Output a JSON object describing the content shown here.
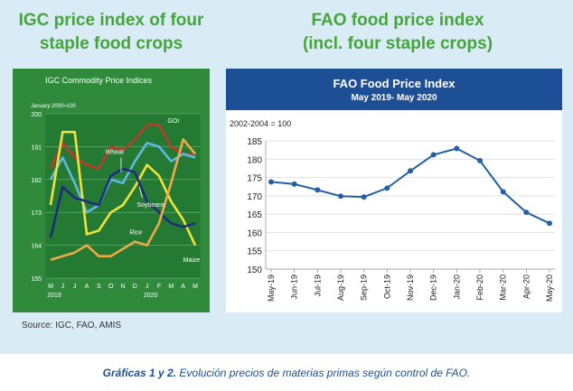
{
  "titles": {
    "left": [
      "IGC price index of four",
      "staple food crops"
    ],
    "right": [
      "FAO food price index",
      "(incl. four staple crops)"
    ]
  },
  "source": "Source: IGC, FAO, AMIS",
  "caption": {
    "bold": "Gráficas 1 y 2.",
    "rest": " Evolución precios de materias primas según control de FAO."
  },
  "colors": {
    "title_green": "#46a43d",
    "panel_bg": "#d9ecf6",
    "igc_bg": "#2f8a3c",
    "fao_header": "#1d4f97",
    "fao_line": "#2460a7"
  },
  "chart_data": [
    {
      "type": "line",
      "title": "IGC Commodity Price Indices",
      "subtitle": "January 2000=100",
      "ylim": [
        155,
        200
      ],
      "yticks": [
        155,
        164,
        173,
        182,
        191,
        200
      ],
      "x_tick_labels": [
        "M",
        "J",
        "J",
        "A",
        "S",
        "O",
        "N",
        "D",
        "J",
        "F",
        "M",
        "A",
        "M"
      ],
      "x_year_labels": [
        {
          "label": "2019",
          "index": 0
        },
        {
          "label": "2020",
          "index": 8
        }
      ],
      "series": [
        {
          "name": "GOI",
          "color": "#c0392b",
          "values": [
            185,
            192,
            188,
            186,
            185,
            191,
            190,
            193,
            197,
            197,
            191,
            189,
            189
          ]
        },
        {
          "name": "Wheat",
          "color": "#5fb9e3",
          "values": [
            182,
            188,
            181,
            173,
            175,
            182,
            181,
            187,
            192,
            191,
            187,
            189,
            188
          ]
        },
        {
          "name": "Soybeans",
          "color": "#f0e23c",
          "values": [
            175,
            195,
            195,
            167,
            168,
            173,
            175,
            180,
            186,
            183,
            176,
            171,
            164
          ]
        },
        {
          "name": "Rice",
          "color": "#1d2f7a",
          "values": [
            166,
            180,
            177,
            176,
            175,
            183,
            185,
            184,
            176,
            173,
            170,
            169,
            170
          ]
        },
        {
          "name": "Maize",
          "color": "#f0a848",
          "values": [
            160,
            161,
            162,
            164,
            161,
            161,
            163,
            165,
            164,
            170,
            181,
            193,
            189
          ]
        }
      ],
      "label_texts": [
        "GOI",
        "Wheat",
        "Soybeans",
        "Rice",
        "Maize"
      ]
    },
    {
      "type": "line",
      "title": "FAO Food Price Index",
      "subtitle": "May 2019- May 2020",
      "ylabel": "2002-2004 = 100",
      "ylim": [
        150,
        185
      ],
      "yticks": [
        150,
        155,
        160,
        165,
        170,
        175,
        180,
        185
      ],
      "categories": [
        "May-19",
        "Jun-19",
        "Jul-19",
        "Aug-19",
        "Sep-19",
        "Oct-19",
        "Nov-19",
        "Dec-19",
        "Jan-20",
        "Feb-20",
        "Mar-20",
        "Apr-20",
        "May-20"
      ],
      "values": [
        173.8,
        173.2,
        171.6,
        169.9,
        169.7,
        172.1,
        176.8,
        181.2,
        182.9,
        179.6,
        171.1,
        165.5,
        162.5
      ]
    }
  ]
}
